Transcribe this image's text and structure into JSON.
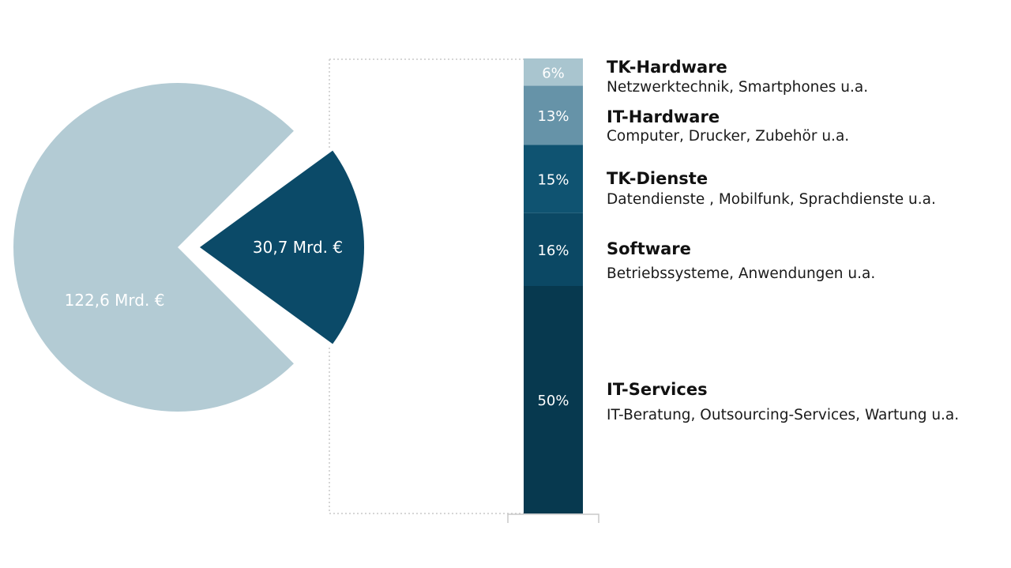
{
  "chart_data": {
    "type": "pie",
    "pie": {
      "slices": [
        {
          "label": "122,6 Mrd. €",
          "value": 122.6,
          "color": "#b3cbd4"
        },
        {
          "label": "30,7 Mrd. €",
          "value": 30.7,
          "color": "#0b4a68"
        }
      ]
    },
    "breakdown": {
      "type": "stacked-bar",
      "segments": [
        {
          "percent_label": "6%",
          "value": 6,
          "title": "TK-Hardware",
          "subtitle": "Netzwerktechnik, Smartphones u.a.",
          "color": "#a9c5cf"
        },
        {
          "percent_label": "13%",
          "value": 13,
          "title": "IT-Hardware",
          "subtitle": "Computer, Drucker, Zubehör u.a.",
          "color": "#6693a8"
        },
        {
          "percent_label": "15%",
          "value": 15,
          "title": "TK-Dienste",
          "subtitle": "Datendienste , Mobilfunk, Sprachdienste u.a.",
          "color": "#0f5371"
        },
        {
          "percent_label": "16%",
          "value": 16,
          "title": "Software",
          "subtitle": "Betriebssysteme, Anwendungen u.a.",
          "color": "#0b4864"
        },
        {
          "percent_label": "50%",
          "value": 50,
          "title": "IT-Services",
          "subtitle": "IT-Beratung, Outsourcing-Services, Wartung u.a.",
          "color": "#07394f"
        }
      ]
    }
  }
}
